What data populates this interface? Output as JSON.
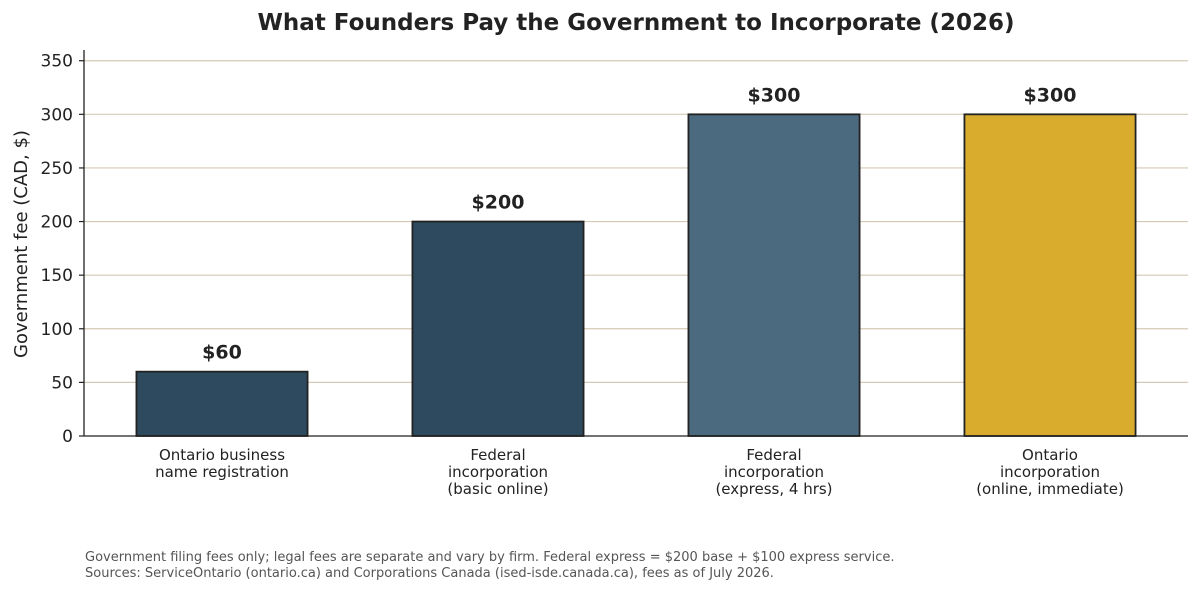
{
  "chart_data": {
    "type": "bar",
    "title": "What Founders Pay the Government to Incorporate (2026)",
    "xlabel": "",
    "ylabel": "Government fee (CAD, $)",
    "ylim": [
      0,
      360
    ],
    "yticks": [
      0,
      50,
      100,
      150,
      200,
      250,
      300,
      350
    ],
    "grid": "horizontal",
    "categories": [
      [
        "Ontario business",
        "name registration"
      ],
      [
        "Federal",
        "incorporation",
        "(basic online)"
      ],
      [
        "Federal",
        "incorporation",
        "(express, 4 hrs)"
      ],
      [
        "Ontario",
        "incorporation",
        "(online, immediate)"
      ]
    ],
    "values": [
      60,
      200,
      300,
      300
    ],
    "data_labels": [
      "$60",
      "$200",
      "$300",
      "$300"
    ],
    "colors": [
      "#2e4a5e",
      "#2e4a5e",
      "#4b6a80",
      "#d9ac2e"
    ],
    "grid_color": "#d4c9b5"
  },
  "footnotes": [
    "Government filing fees only; legal fees are separate and vary by firm. Federal express = $200 base + $100 express service.",
    "Sources: ServiceOntario (ontario.ca) and Corporations Canada (ised-isde.canada.ca), fees as of July 2026."
  ]
}
